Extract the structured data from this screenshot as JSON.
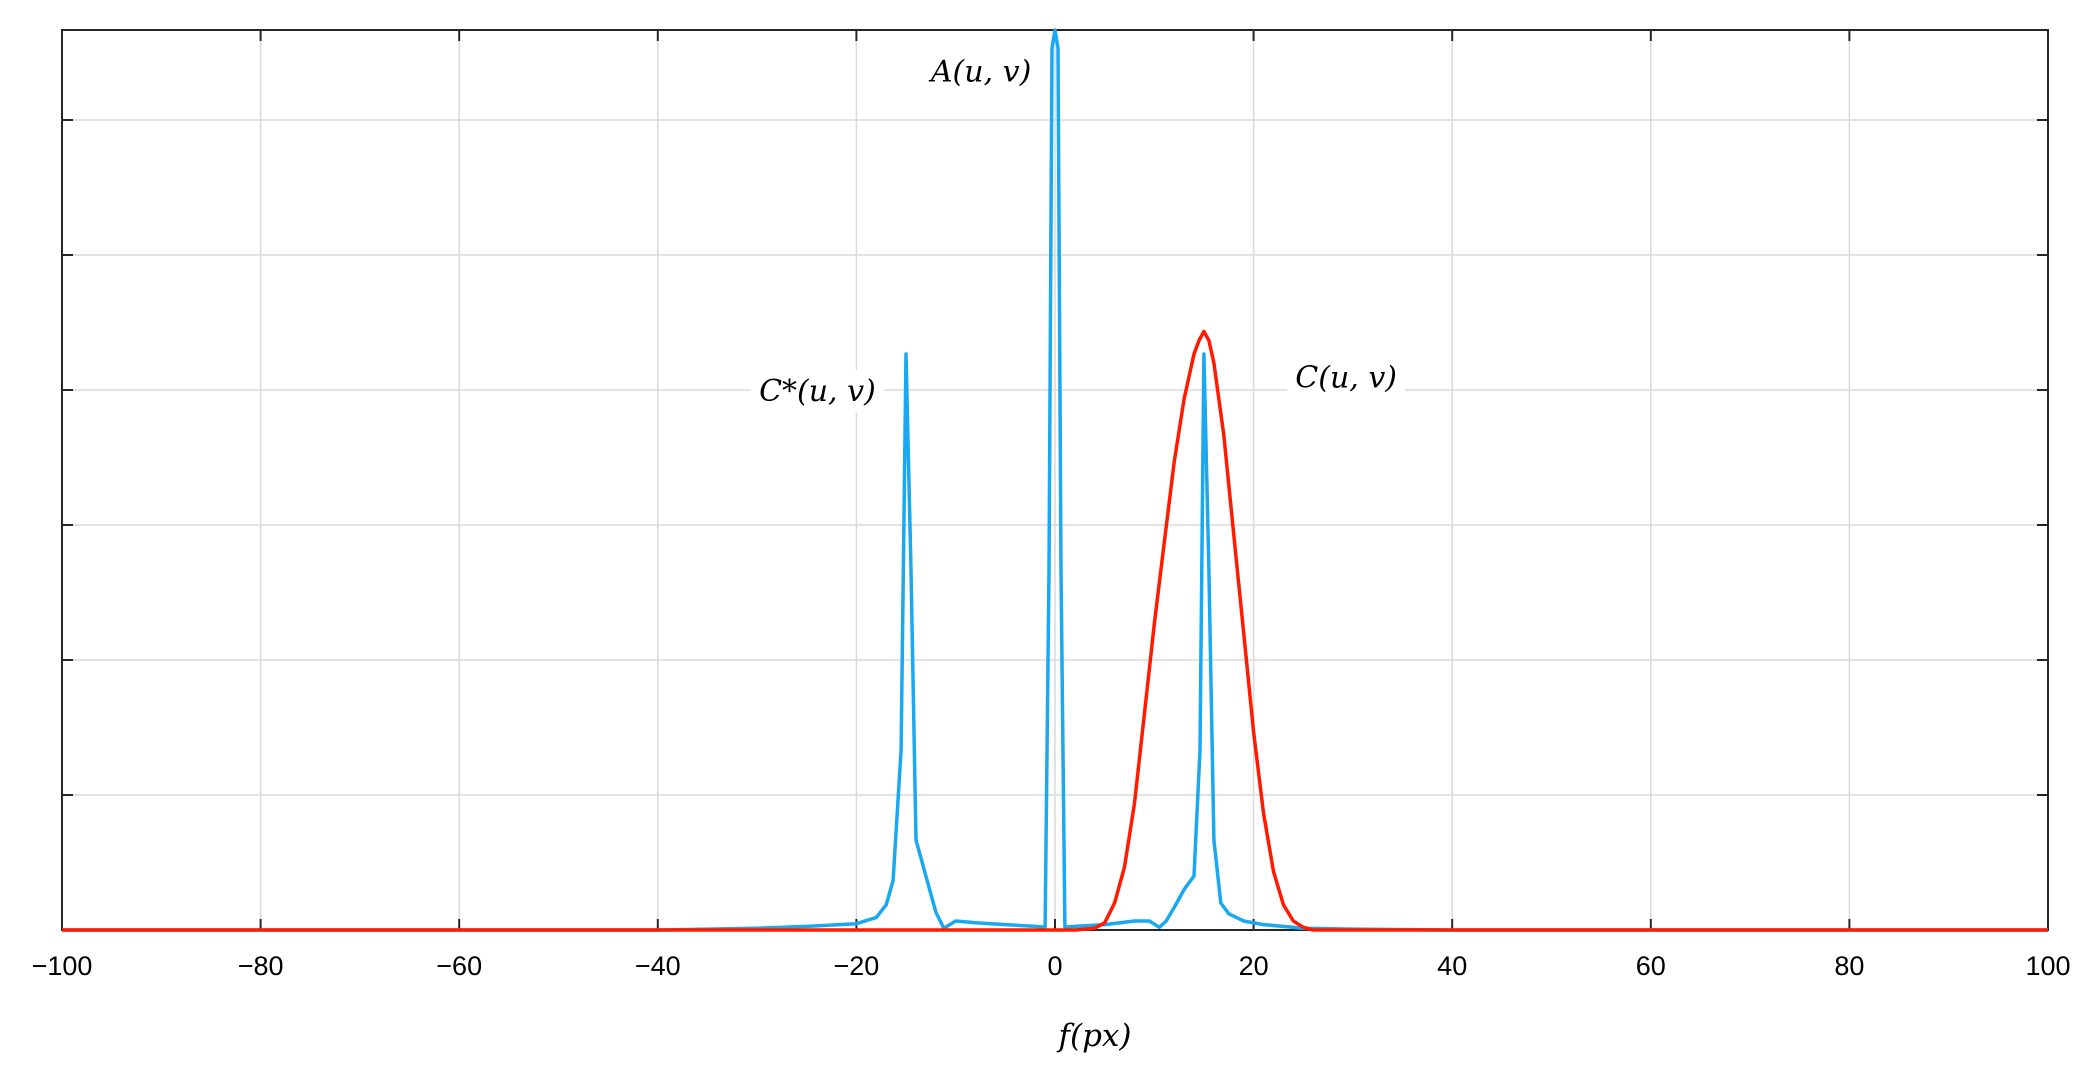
{
  "chart_data": {
    "type": "line",
    "title": "",
    "xlabel": "f(px)",
    "ylabel": "",
    "xlim": [
      -100,
      100
    ],
    "ylim": [
      0,
      1.0
    ],
    "x_ticks": [
      -100,
      -80,
      -60,
      -40,
      -20,
      0,
      20,
      40,
      60,
      80,
      100
    ],
    "x_tick_labels": [
      "−100",
      "−80",
      "−60",
      "−40",
      "−20",
      "0",
      "20",
      "40",
      "60",
      "80",
      "100"
    ],
    "y_ticks": [
      0,
      0.15,
      0.3,
      0.45,
      0.6,
      0.75,
      0.9
    ],
    "y_tick_labels_visible": false,
    "grid": true,
    "legend": "none",
    "series": [
      {
        "color": "#1aa8f0",
        "x": [
          -100,
          -40,
          -30,
          -25,
          -20,
          -18,
          -17,
          -16.3,
          -15.5,
          -15,
          -14.5,
          -14,
          -13,
          -12,
          -11.2,
          -10,
          -8,
          -5,
          -2,
          -1,
          -0.6,
          -0.3,
          0,
          0.3,
          0.6,
          1,
          2,
          5,
          8,
          9.5,
          10.5,
          11.2,
          12,
          13,
          14,
          14.6,
          15,
          15.5,
          16,
          16.7,
          17.5,
          19,
          21,
          25,
          30,
          40,
          100
        ],
        "y": [
          0,
          0,
          0.002,
          0.004,
          0.007,
          0.014,
          0.028,
          0.055,
          0.2,
          0.64,
          0.4,
          0.1,
          0.06,
          0.02,
          0.002,
          0.01,
          0.008,
          0.006,
          0.004,
          0.003,
          0.4,
          0.98,
          1.0,
          0.98,
          0.4,
          0.003,
          0.004,
          0.006,
          0.01,
          0.01,
          0.003,
          0.01,
          0.025,
          0.045,
          0.06,
          0.2,
          0.64,
          0.4,
          0.1,
          0.03,
          0.018,
          0.01,
          0.006,
          0.002,
          0.001,
          0,
          0
        ]
      },
      {
        "color": "#ff1a00",
        "x": [
          -100,
          0,
          2,
          4,
          5,
          6,
          7,
          8,
          9,
          10,
          11,
          12,
          13,
          14,
          14.5,
          15,
          15.5,
          16,
          17,
          18,
          19,
          20,
          21,
          22,
          23,
          24,
          25,
          26,
          30,
          100
        ],
        "y": [
          0,
          0,
          0,
          0.002,
          0.008,
          0.03,
          0.07,
          0.14,
          0.24,
          0.34,
          0.43,
          0.52,
          0.59,
          0.64,
          0.655,
          0.665,
          0.655,
          0.63,
          0.55,
          0.44,
          0.33,
          0.22,
          0.13,
          0.065,
          0.028,
          0.01,
          0.003,
          0,
          0,
          0
        ]
      }
    ],
    "annotations": [
      {
        "text": "A(u, v)",
        "x": -12.5,
        "y": 0.955
      },
      {
        "text": "C*(u, v)",
        "x": -29.8,
        "y": 0.6
      },
      {
        "text": "C(u, v)",
        "x": 24.2,
        "y": 0.615
      }
    ]
  }
}
